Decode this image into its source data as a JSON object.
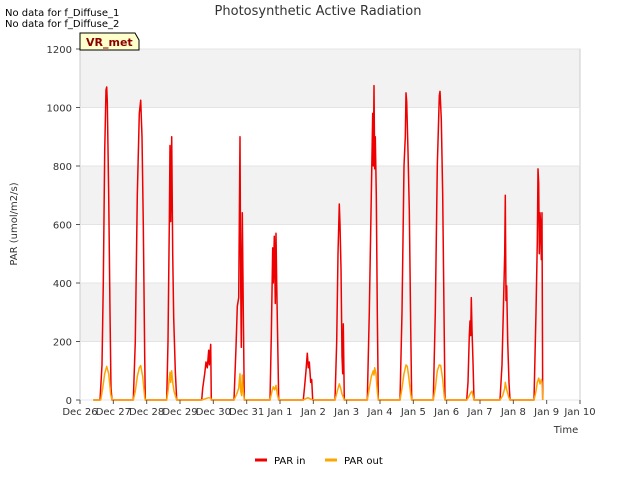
{
  "notes": [
    "No data for f_Diffuse_1",
    "No data for f_Diffuse_2"
  ],
  "badge": "VR_met",
  "chart_data": {
    "type": "line",
    "title": "Photosynthetic Active Radiation",
    "xlabel": "Time",
    "ylabel": "PAR (umol/m2/s)",
    "ylim": [
      0,
      1200
    ],
    "yticks": [
      0,
      200,
      400,
      600,
      800,
      1000,
      1200
    ],
    "xlim_days": [
      0,
      15
    ],
    "xticks": [
      "Dec 26",
      "Dec 27",
      "Dec 28",
      "Dec 29",
      "Dec 30",
      "Dec 31",
      "Jan 1",
      "Jan 2",
      "Jan 3",
      "Jan 4",
      "Jan 5",
      "Jan 6",
      "Jan 7",
      "Jan 8",
      "Jan 9",
      "Jan 10"
    ],
    "grid": true,
    "legend_position": "bottom-center",
    "series": [
      {
        "name": "PAR in",
        "color": "#ee0000",
        "points": [
          [
            0.4,
            0
          ],
          [
            0.6,
            0
          ],
          [
            0.66,
            120
          ],
          [
            0.7,
            400
          ],
          [
            0.74,
            850
          ],
          [
            0.78,
            1060
          ],
          [
            0.8,
            1070
          ],
          [
            0.82,
            1020
          ],
          [
            0.86,
            700
          ],
          [
            0.9,
            300
          ],
          [
            0.93,
            40
          ],
          [
            0.96,
            0
          ],
          [
            1.6,
            0
          ],
          [
            1.66,
            200
          ],
          [
            1.72,
            700
          ],
          [
            1.78,
            980
          ],
          [
            1.82,
            1025
          ],
          [
            1.86,
            900
          ],
          [
            1.9,
            600
          ],
          [
            1.94,
            150
          ],
          [
            1.96,
            0
          ],
          [
            2.6,
            0
          ],
          [
            2.64,
            200
          ],
          [
            2.68,
            600
          ],
          [
            2.7,
            870
          ],
          [
            2.72,
            610
          ],
          [
            2.75,
            900
          ],
          [
            2.78,
            500
          ],
          [
            2.81,
            280
          ],
          [
            2.86,
            100
          ],
          [
            2.9,
            0
          ],
          [
            3.65,
            0
          ],
          [
            3.68,
            40
          ],
          [
            3.74,
            90
          ],
          [
            3.78,
            130
          ],
          [
            3.82,
            110
          ],
          [
            3.86,
            170
          ],
          [
            3.88,
            120
          ],
          [
            3.92,
            190
          ],
          [
            3.94,
            0
          ],
          [
            4.62,
            0
          ],
          [
            4.68,
            180
          ],
          [
            4.72,
            320
          ],
          [
            4.76,
            350
          ],
          [
            4.8,
            900
          ],
          [
            4.82,
            400
          ],
          [
            4.84,
            180
          ],
          [
            4.87,
            640
          ],
          [
            4.9,
            300
          ],
          [
            4.93,
            0
          ],
          [
            5.7,
            0
          ],
          [
            5.74,
            220
          ],
          [
            5.78,
            520
          ],
          [
            5.8,
            400
          ],
          [
            5.83,
            560
          ],
          [
            5.86,
            330
          ],
          [
            5.88,
            570
          ],
          [
            5.9,
            400
          ],
          [
            5.93,
            200
          ],
          [
            5.96,
            0
          ],
          [
            6.7,
            0
          ],
          [
            6.74,
            50
          ],
          [
            6.78,
            100
          ],
          [
            6.82,
            160
          ],
          [
            6.85,
            110
          ],
          [
            6.88,
            130
          ],
          [
            6.92,
            60
          ],
          [
            6.95,
            70
          ],
          [
            6.98,
            0
          ],
          [
            7.65,
            0
          ],
          [
            7.7,
            200
          ],
          [
            7.74,
            500
          ],
          [
            7.78,
            670
          ],
          [
            7.8,
            600
          ],
          [
            7.83,
            450
          ],
          [
            7.86,
            150
          ],
          [
            7.88,
            90
          ],
          [
            7.9,
            260
          ],
          [
            7.93,
            0
          ],
          [
            8.62,
            0
          ],
          [
            8.68,
            300
          ],
          [
            8.74,
            700
          ],
          [
            8.78,
            980
          ],
          [
            8.8,
            800
          ],
          [
            8.82,
            1075
          ],
          [
            8.84,
            790
          ],
          [
            8.86,
            900
          ],
          [
            8.89,
            700
          ],
          [
            8.92,
            300
          ],
          [
            8.95,
            0
          ],
          [
            9.6,
            0
          ],
          [
            9.66,
            300
          ],
          [
            9.72,
            800
          ],
          [
            9.76,
            900
          ],
          [
            9.78,
            1050
          ],
          [
            9.8,
            1020
          ],
          [
            9.84,
            850
          ],
          [
            9.88,
            650
          ],
          [
            9.92,
            250
          ],
          [
            9.95,
            0
          ],
          [
            10.6,
            0
          ],
          [
            10.66,
            300
          ],
          [
            10.72,
            800
          ],
          [
            10.78,
            1040
          ],
          [
            10.8,
            1055
          ],
          [
            10.84,
            960
          ],
          [
            10.88,
            700
          ],
          [
            10.92,
            300
          ],
          [
            10.95,
            0
          ],
          [
            11.6,
            0
          ],
          [
            11.64,
            60
          ],
          [
            11.68,
            220
          ],
          [
            11.7,
            270
          ],
          [
            11.72,
            220
          ],
          [
            11.74,
            350
          ],
          [
            11.76,
            240
          ],
          [
            11.79,
            130
          ],
          [
            11.82,
            0
          ],
          [
            12.6,
            0
          ],
          [
            12.66,
            120
          ],
          [
            12.7,
            300
          ],
          [
            12.74,
            500
          ],
          [
            12.76,
            700
          ],
          [
            12.78,
            340
          ],
          [
            12.8,
            390
          ],
          [
            12.83,
            200
          ],
          [
            12.87,
            60
          ],
          [
            12.9,
            0
          ],
          [
            13.62,
            0
          ],
          [
            13.68,
            300
          ],
          [
            13.72,
            540
          ],
          [
            13.74,
            790
          ],
          [
            13.76,
            740
          ],
          [
            13.78,
            500
          ],
          [
            13.8,
            640
          ],
          [
            13.82,
            600
          ],
          [
            13.84,
            480
          ],
          [
            13.86,
            640
          ],
          [
            13.88,
            0
          ]
        ]
      },
      {
        "name": "PAR out",
        "color": "#ffa500",
        "points": [
          [
            0.4,
            0
          ],
          [
            0.62,
            0
          ],
          [
            0.68,
            40
          ],
          [
            0.74,
            90
          ],
          [
            0.8,
            115
          ],
          [
            0.86,
            90
          ],
          [
            0.92,
            20
          ],
          [
            0.96,
            0
          ],
          [
            1.6,
            0
          ],
          [
            1.66,
            30
          ],
          [
            1.72,
            80
          ],
          [
            1.78,
            110
          ],
          [
            1.82,
            118
          ],
          [
            1.88,
            80
          ],
          [
            1.94,
            10
          ],
          [
            1.96,
            0
          ],
          [
            2.6,
            0
          ],
          [
            2.64,
            30
          ],
          [
            2.68,
            75
          ],
          [
            2.7,
            95
          ],
          [
            2.72,
            60
          ],
          [
            2.75,
            100
          ],
          [
            2.78,
            60
          ],
          [
            2.82,
            30
          ],
          [
            2.9,
            0
          ],
          [
            3.65,
            0
          ],
          [
            3.7,
            2
          ],
          [
            3.78,
            5
          ],
          [
            3.86,
            8
          ],
          [
            3.92,
            6
          ],
          [
            3.94,
            0
          ],
          [
            4.62,
            0
          ],
          [
            4.7,
            20
          ],
          [
            4.76,
            40
          ],
          [
            4.8,
            90
          ],
          [
            4.82,
            30
          ],
          [
            4.85,
            15
          ],
          [
            4.87,
            85
          ],
          [
            4.9,
            30
          ],
          [
            4.93,
            0
          ],
          [
            5.7,
            0
          ],
          [
            5.76,
            30
          ],
          [
            5.8,
            45
          ],
          [
            5.84,
            35
          ],
          [
            5.88,
            50
          ],
          [
            5.92,
            20
          ],
          [
            5.96,
            0
          ],
          [
            6.7,
            0
          ],
          [
            6.78,
            5
          ],
          [
            6.84,
            8
          ],
          [
            6.9,
            4
          ],
          [
            6.98,
            0
          ],
          [
            7.65,
            0
          ],
          [
            7.72,
            30
          ],
          [
            7.78,
            55
          ],
          [
            7.82,
            40
          ],
          [
            7.86,
            20
          ],
          [
            7.9,
            10
          ],
          [
            7.93,
            0
          ],
          [
            8.62,
            0
          ],
          [
            8.68,
            40
          ],
          [
            8.74,
            80
          ],
          [
            8.8,
            100
          ],
          [
            8.82,
            85
          ],
          [
            8.84,
            110
          ],
          [
            8.88,
            90
          ],
          [
            8.92,
            30
          ],
          [
            8.95,
            0
          ],
          [
            9.6,
            0
          ],
          [
            9.66,
            40
          ],
          [
            9.72,
            90
          ],
          [
            9.78,
            120
          ],
          [
            9.82,
            115
          ],
          [
            9.86,
            80
          ],
          [
            9.92,
            20
          ],
          [
            9.95,
            0
          ],
          [
            10.6,
            0
          ],
          [
            10.66,
            40
          ],
          [
            10.72,
            100
          ],
          [
            10.78,
            120
          ],
          [
            10.82,
            118
          ],
          [
            10.88,
            70
          ],
          [
            10.93,
            10
          ],
          [
            10.95,
            0
          ],
          [
            11.6,
            0
          ],
          [
            11.66,
            10
          ],
          [
            11.72,
            25
          ],
          [
            11.76,
            30
          ],
          [
            11.8,
            10
          ],
          [
            11.82,
            0
          ],
          [
            12.6,
            0
          ],
          [
            12.68,
            15
          ],
          [
            12.74,
            40
          ],
          [
            12.76,
            60
          ],
          [
            12.8,
            35
          ],
          [
            12.86,
            10
          ],
          [
            12.9,
            0
          ],
          [
            13.62,
            0
          ],
          [
            13.68,
            30
          ],
          [
            13.72,
            60
          ],
          [
            13.76,
            75
          ],
          [
            13.8,
            55
          ],
          [
            13.84,
            70
          ],
          [
            13.86,
            60
          ],
          [
            13.88,
            0
          ]
        ]
      }
    ]
  }
}
